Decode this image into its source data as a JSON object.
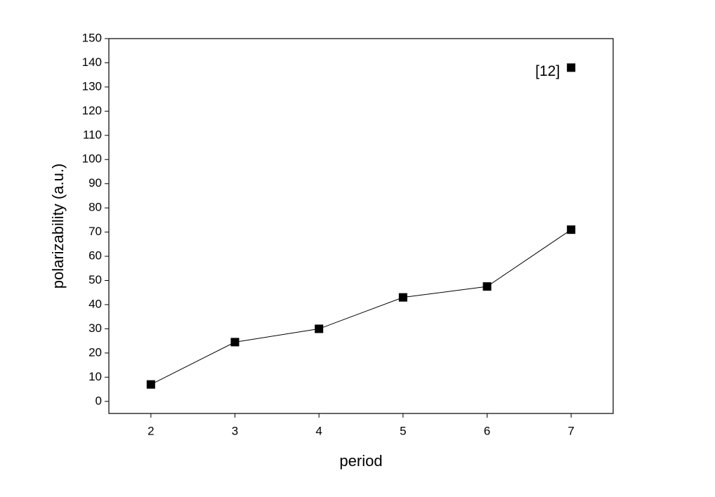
{
  "chart_data": {
    "type": "line",
    "x_label": "period",
    "y_label": "polarizability (a.u.)",
    "x": [
      2,
      3,
      4,
      5,
      6,
      7
    ],
    "series": [
      {
        "color": "#000000",
        "line": true,
        "values": [
          7,
          24.5,
          30,
          43,
          47.5,
          71
        ]
      },
      {
        "color": "#000000",
        "line": false,
        "label": "[12]",
        "values": [
          null,
          null,
          null,
          null,
          null,
          138
        ]
      }
    ],
    "xlim": [
      1.5,
      7.5
    ],
    "xticks": [
      2,
      3,
      4,
      5,
      6,
      7
    ],
    "ylim": [
      -5,
      150
    ],
    "yticks": [
      0,
      10,
      20,
      30,
      40,
      50,
      60,
      70,
      80,
      90,
      100,
      110,
      120,
      130,
      140,
      150
    ],
    "grid": false
  }
}
